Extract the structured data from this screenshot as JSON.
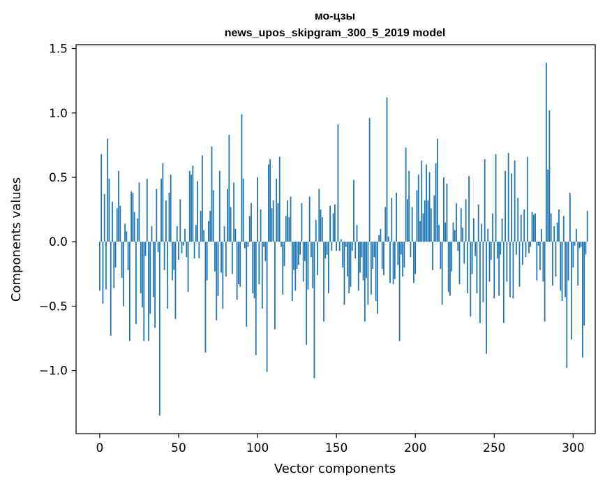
{
  "chart_data": {
    "type": "bar",
    "title": "мо-цзы",
    "subtitle": "news_upos_skipgram_300_5_2019 model",
    "xlabel": "Vector components",
    "ylabel": "Components values",
    "xlim": [
      -15,
      314
    ],
    "ylim": [
      -1.49,
      1.53
    ],
    "x_ticks": [
      0,
      50,
      100,
      150,
      200,
      250,
      300
    ],
    "y_ticks": [
      -1.0,
      -0.5,
      0.0,
      0.5,
      1.0,
      1.5
    ],
    "y_tick_labels": [
      "−1.0",
      "−0.5",
      "0.0",
      "0.5",
      "1.0",
      "1.5"
    ],
    "x_tick_labels": [
      "0",
      "50",
      "100",
      "150",
      "200",
      "250",
      "300"
    ],
    "bar_color": "#1f77b4",
    "grid": false,
    "legend": "none",
    "values": [
      -0.38,
      0.68,
      -0.48,
      0.37,
      -0.37,
      0.8,
      0.49,
      -0.73,
      0.31,
      -0.36,
      -0.2,
      0.26,
      0.55,
      0.28,
      -0.28,
      -0.5,
      0.14,
      0.08,
      -0.22,
      -0.77,
      0.39,
      0.38,
      0.23,
      -0.64,
      0.18,
      0.46,
      -0.4,
      -0.51,
      -0.77,
      -0.11,
      0.49,
      -0.77,
      -0.56,
      0.12,
      -0.43,
      -0.67,
      0.41,
      -0.08,
      -1.35,
      0.49,
      0.61,
      -0.22,
      0.32,
      -0.52,
      0.38,
      0.52,
      -0.3,
      -0.22,
      -0.6,
      0.12,
      -0.14,
      0.33,
      -0.09,
      -0.03,
      0.1,
      -0.12,
      -0.39,
      0.55,
      0.52,
      0.59,
      -0.13,
      0.13,
      0.47,
      -0.13,
      0.24,
      0.67,
      0.09,
      -0.86,
      -0.3,
      0.16,
      0.24,
      0.74,
      0.4,
      -0.23,
      -0.61,
      -0.42,
      0.55,
      -0.24,
      -0.52,
      0.12,
      -0.27,
      0.41,
      0.83,
      0.27,
      -0.25,
      0.46,
      0.1,
      -0.45,
      -0.33,
      -0.35,
      0.99,
      0.49,
      -0.05,
      -0.66,
      -0.04,
      0.2,
      0.3,
      -0.4,
      -0.44,
      -0.88,
      0.5,
      -0.33,
      0.25,
      -0.52,
      -0.04,
      -0.15,
      -1.01,
      0.6,
      0.64,
      0.26,
      0.32,
      -0.68,
      0.49,
      0.3,
      0.66,
      -0.04,
      -0.41,
      -0.19,
      0.2,
      0.32,
      0.19,
      0.35,
      -0.46,
      -0.22,
      -0.38,
      -0.21,
      -0.18,
      -0.1,
      0.3,
      -0.31,
      -0.15,
      -0.8,
      -0.37,
      0.35,
      -0.12,
      -0.36,
      -1.06,
      0.17,
      -0.26,
      0.41,
      0.25,
      0.19,
      -0.62,
      -0.13,
      -0.1,
      -0.4,
      0.28,
      -0.07,
      0.22,
      0.29,
      -0.07,
      0.91,
      -0.07,
      0.02,
      -0.2,
      -0.49,
      -0.04,
      -0.27,
      -0.4,
      -0.35,
      -0.07,
      0.48,
      -0.13,
      0.13,
      -0.38,
      -0.24,
      -0.12,
      -0.3,
      -0.62,
      -0.28,
      -0.49,
      0.96,
      -0.41,
      -0.21,
      -0.12,
      -0.46,
      -0.56,
      0.05,
      0.1,
      -0.21,
      -0.26,
      0.27,
      1.12,
      0.04,
      -0.32,
      0.34,
      -0.33,
      -0.29,
      0.38,
      -0.18,
      -0.77,
      -0.1,
      -0.27,
      -0.2,
      0.73,
      0.33,
      0.55,
      -0.12,
      0.27,
      -0.32,
      -0.25,
      0.4,
      0.52,
      0.16,
      0.63,
      0.22,
      0.32,
      0.6,
      0.32,
      0.54,
      0.26,
      -0.22,
      0.36,
      0.61,
      0.8,
      0.13,
      -0.21,
      -0.49,
      0.5,
      0.15,
      0.45,
      -0.39,
      -0.42,
      -0.23,
      0.15,
      0.09,
      0.3,
      -0.07,
      -0.33,
      0.26,
      0.11,
      -0.17,
      0.33,
      -0.4,
      0.51,
      -0.58,
      -0.25,
      0.18,
      -0.11,
      -0.4,
      0.29,
      -0.63,
      0.14,
      -0.47,
      0.64,
      -0.87,
      0.1,
      -0.31,
      -0.14,
      0.22,
      -0.44,
      0.68,
      -0.13,
      -0.42,
      -0.1,
      0.18,
      -0.63,
      0.55,
      -0.31,
      0.69,
      -0.43,
      0.53,
      -0.44,
      0.63,
      -0.1,
      0.34,
      -0.35,
      0.21,
      -0.18,
      0.25,
      -0.12,
      0.66,
      -0.09,
      -0.04,
      0.23,
      0.21,
      0.22,
      -0.3,
      -0.03,
      -0.22,
      0.1,
      -0.31,
      -0.62,
      1.39,
      0.56,
      1.02,
      0.22,
      -0.34,
      0.12,
      -0.27,
      0.15,
      0.25,
      -0.38,
      -0.46,
      0.2,
      -0.43,
      -0.98,
      -0.3,
      0.38,
      -0.76,
      -0.2,
      -0.03,
      0.1,
      -0.34,
      -0.05,
      -0.04,
      -0.9,
      -0.65,
      -0.1,
      0.24
    ]
  }
}
